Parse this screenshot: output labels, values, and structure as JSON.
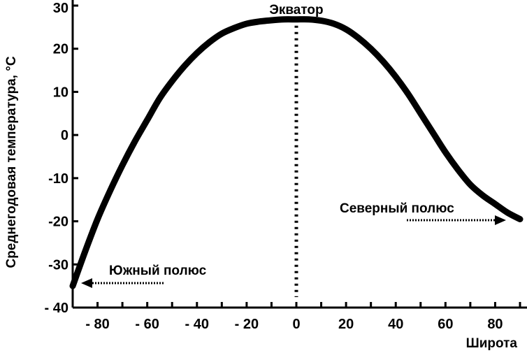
{
  "chart_data": {
    "type": "line",
    "title": "",
    "xlabel": "Широта",
    "ylabel": "Среднегодовая температура, °С",
    "xlim": [
      -90,
      90
    ],
    "ylim": [
      -40,
      30
    ],
    "x_ticks": [
      -80,
      -60,
      -40,
      -20,
      0,
      20,
      40,
      60,
      80
    ],
    "x_tick_labels": [
      "- 80",
      "- 60",
      "- 40",
      "- 20",
      "0",
      "20",
      "40",
      "60",
      "80"
    ],
    "y_ticks": [
      30,
      20,
      10,
      0,
      -10,
      -20,
      -30,
      -40
    ],
    "y_tick_labels": [
      "30",
      "20",
      "10",
      "0",
      "-10",
      "-20",
      "-30",
      "- 40"
    ],
    "grid": false,
    "legend": "none",
    "series": [
      {
        "x": [
          -90,
          -85,
          -80,
          -75,
          -70,
          -65,
          -60,
          -55,
          -50,
          -45,
          -40,
          -35,
          -30,
          -25,
          -20,
          -15,
          -10,
          -5,
          0,
          5,
          10,
          15,
          20,
          25,
          30,
          35,
          40,
          45,
          50,
          55,
          60,
          65,
          70,
          75,
          80,
          85,
          90
        ],
        "y": [
          -35,
          -27,
          -19.5,
          -13,
          -7,
          -1.5,
          3.5,
          8.5,
          12.5,
          16,
          19,
          21.5,
          23.5,
          24.8,
          25.8,
          26.3,
          26.6,
          26.8,
          26.8,
          26.8,
          26.5,
          25.8,
          24.5,
          22.5,
          20,
          17,
          13.5,
          9.5,
          5,
          0.5,
          -4,
          -8,
          -11.5,
          -14,
          -16,
          -18,
          -19.5
        ]
      }
    ],
    "annotations": {
      "equator": {
        "label": "Экватор",
        "x": 0
      },
      "north_pole": {
        "label": "Северный полюс",
        "x": 90
      },
      "south_pole": {
        "label": "Южный полюс",
        "x": -90
      }
    }
  }
}
